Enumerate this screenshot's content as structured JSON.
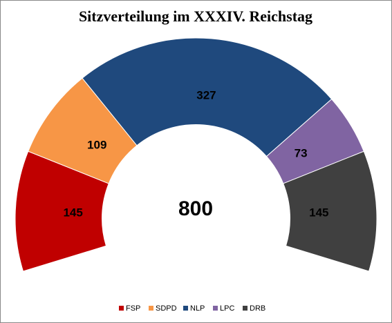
{
  "chart_data": {
    "type": "donut",
    "title": "Sitzverteilung im XXXIV. Reichstag",
    "categories": [
      "FSP",
      "SDPD",
      "NLP",
      "LPC",
      "DRB"
    ],
    "values": [
      145,
      109,
      327,
      73,
      145
    ],
    "colors": [
      "#c00000",
      "#f79646",
      "#1f497d",
      "#8064a2",
      "#404040"
    ],
    "total": 800,
    "legend": "bottom"
  }
}
